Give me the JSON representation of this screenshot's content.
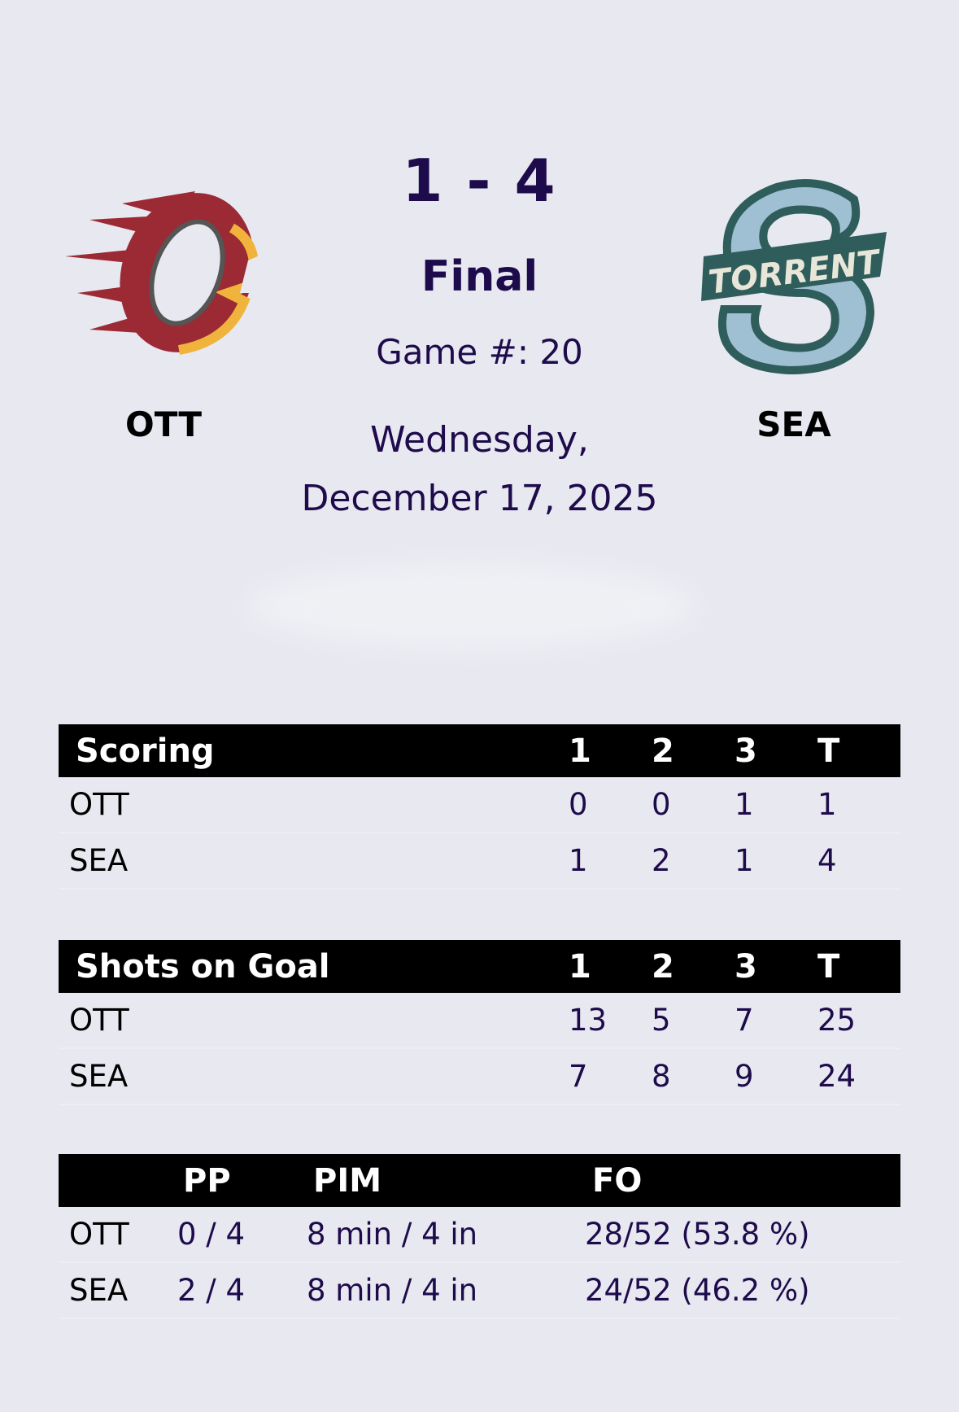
{
  "game": {
    "score": "1 - 4",
    "status": "Final",
    "game_number": "Game #: 20",
    "date_line1": "Wednesday,",
    "date_line2": "December 17, 2025"
  },
  "home": {
    "abbr": "OTT",
    "logo": "ott-flame-o-logo",
    "colors": [
      "#9b2a34",
      "#f0b33c",
      "#ffffff"
    ]
  },
  "away": {
    "abbr": "SEA",
    "logo": "seattle-torrent-s-logo",
    "logo_text": "TORRENT",
    "colors": [
      "#9fc0d3",
      "#2f5d5c",
      "#e8e6d8"
    ]
  },
  "scoring": {
    "headers": [
      "Scoring",
      "1",
      "2",
      "3",
      "T"
    ],
    "rows": [
      {
        "team": "OTT",
        "p1": "0",
        "p2": "0",
        "p3": "1",
        "t": "1"
      },
      {
        "team": "SEA",
        "p1": "1",
        "p2": "2",
        "p3": "1",
        "t": "4"
      }
    ]
  },
  "shots": {
    "headers": [
      "Shots on Goal",
      "1",
      "2",
      "3",
      "T"
    ],
    "rows": [
      {
        "team": "OTT",
        "p1": "13",
        "p2": "5",
        "p3": "7",
        "t": "25"
      },
      {
        "team": "SEA",
        "p1": "7",
        "p2": "8",
        "p3": "9",
        "t": "24"
      }
    ]
  },
  "special": {
    "headers": [
      "",
      "PP",
      "PIM",
      "FO"
    ],
    "rows": [
      {
        "team": "OTT",
        "pp": "0 / 4",
        "pim": "8 min / 4 in",
        "fo": "28/52 (53.8 %)"
      },
      {
        "team": "SEA",
        "pp": "2 / 4",
        "pim": "8 min / 4 in",
        "fo": "24/52 (46.2 %)"
      }
    ]
  }
}
